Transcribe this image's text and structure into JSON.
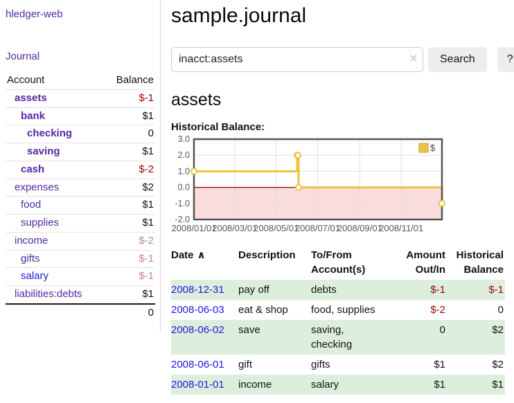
{
  "app": {
    "brand": "hledger-web",
    "nav_journal": "Journal"
  },
  "sidebar": {
    "headers": {
      "account": "Account",
      "balance": "Balance"
    },
    "rows": [
      {
        "label": "assets",
        "indent": 1,
        "bold": true,
        "balance": "$-1",
        "balance_tone": "neg-dark"
      },
      {
        "label": "bank",
        "indent": 2,
        "bold": true,
        "balance": "$1",
        "balance_tone": "default"
      },
      {
        "label": "checking",
        "indent": 3,
        "bold": true,
        "balance": "0",
        "balance_tone": "default"
      },
      {
        "label": "saving",
        "indent": 3,
        "bold": true,
        "balance": "$1",
        "balance_tone": "default"
      },
      {
        "label": "cash",
        "indent": 2,
        "bold": true,
        "balance": "$-2",
        "balance_tone": "neg-dark"
      },
      {
        "label": "expenses",
        "indent": 1,
        "bold": false,
        "balance": "$2",
        "balance_tone": "default"
      },
      {
        "label": "food",
        "indent": 2,
        "bold": false,
        "balance": "$1",
        "balance_tone": "default"
      },
      {
        "label": "supplies",
        "indent": 2,
        "bold": false,
        "balance": "$1",
        "balance_tone": "default"
      },
      {
        "label": "income",
        "indent": 1,
        "bold": false,
        "balance": "$-2",
        "balance_tone": "neg-soft"
      },
      {
        "label": "gifts",
        "indent": 2,
        "bold": false,
        "balance": "$-1",
        "balance_tone": "neg-soft"
      },
      {
        "label": "salary",
        "indent": 2,
        "bold": false,
        "balance": "$-1",
        "balance_tone": "neg-soft",
        "link_tone": "blue"
      },
      {
        "label": "liabilities:debts",
        "indent": 1,
        "bold": false,
        "balance": "$1",
        "balance_tone": "default"
      }
    ],
    "total": "0"
  },
  "main": {
    "title": "sample.journal",
    "search": {
      "value": "inacct:assets",
      "clear_icon": "×",
      "button": "Search",
      "help_button": "?"
    },
    "account_heading": "assets",
    "chart_label": "Historical Balance:"
  },
  "chart_data": {
    "type": "line",
    "step": true,
    "title": "Historical Balance",
    "series": [
      {
        "name": "$",
        "points": [
          [
            "2008-01-01",
            1
          ],
          [
            "2008-06-01",
            2
          ],
          [
            "2008-06-02",
            2
          ],
          [
            "2008-06-03",
            0
          ],
          [
            "2008-12-31",
            -1
          ]
        ]
      }
    ],
    "xlim": [
      "2008-01-01",
      "2008-12-31"
    ],
    "ylim": [
      -2,
      3
    ],
    "yticks": {
      "values": [
        3,
        2,
        1,
        0,
        -1,
        -2
      ],
      "labels": [
        "3.0",
        "2.0",
        "1.0",
        "0.0",
        "-1.0",
        "-2.0"
      ]
    },
    "xticks": {
      "dates": [
        "2008-01-01",
        "2008-03-01",
        "2008-05-01",
        "2008-07-01",
        "2008-09-01",
        "2008-11-01"
      ],
      "labels": [
        "2008/01/01",
        "2008/03/01",
        "2008/05/01",
        "2008/07/01",
        "2008/09/01",
        "2008/11/01"
      ]
    },
    "legend": {
      "label": "$",
      "position": "top-right"
    },
    "negative_region_shaded": true,
    "grid": true
  },
  "register": {
    "headers": [
      "Date",
      "Description",
      "To/From Account(s)",
      "Amount Out/In",
      "Historical Balance"
    ],
    "sort_icon": "∧",
    "rows": [
      {
        "date": "2008-12-31",
        "description": "pay off",
        "accounts": "debts",
        "amount": "$-1",
        "balance": "$-1"
      },
      {
        "date": "2008-06-03",
        "description": "eat & shop",
        "accounts": "food, supplies",
        "amount": "$-2",
        "balance": "0"
      },
      {
        "date": "2008-06-02",
        "description": "save",
        "accounts": "saving, checking",
        "amount": "0",
        "balance": "$2"
      },
      {
        "date": "2008-06-01",
        "description": "gift",
        "accounts": "gifts",
        "amount": "$1",
        "balance": "$2"
      },
      {
        "date": "2008-01-01",
        "description": "income",
        "accounts": "salary",
        "amount": "$1",
        "balance": "$1"
      }
    ]
  },
  "colors": {
    "link_purple": "#5229a3",
    "link_blue": "#1c19dd",
    "neg_dark": "#9e0000",
    "neg_soft": "#c48888",
    "row_green": "#ddeedd",
    "gold": "#edc240",
    "pink": "#fbdcdc",
    "zero_line": "#8b0000",
    "chart_border": "#545454",
    "grid": "#e0e0e0"
  }
}
